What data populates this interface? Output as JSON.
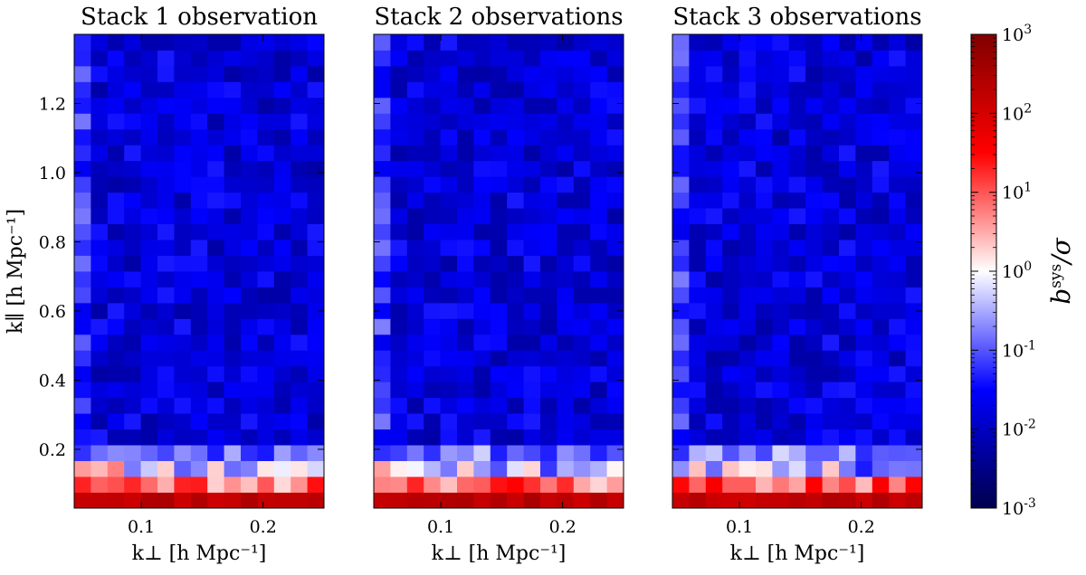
{
  "chart_data": {
    "type": "heatmap",
    "panels": [
      {
        "title": "Stack 1 observation",
        "seed": 11
      },
      {
        "title": "Stack 2 observations",
        "seed": 23
      },
      {
        "title": "Stack 3 observations",
        "seed": 37
      }
    ],
    "xlabel": "k⊥ [h Mpc⁻¹]",
    "ylabel": "k∥ [h Mpc⁻¹]",
    "xlim": [
      0.045,
      0.25
    ],
    "ylim": [
      0.03,
      1.4
    ],
    "xticks": [
      0.1,
      0.2
    ],
    "xtick_labels": [
      "0.1",
      "0.2"
    ],
    "yticks": [
      0.2,
      0.4,
      0.6,
      0.8,
      1.0,
      1.2
    ],
    "ytick_labels": [
      "0.2",
      "0.4",
      "0.6",
      "0.8",
      "1.0",
      "1.2"
    ],
    "grid": {
      "cols": 15,
      "rows": 30
    },
    "colorbar": {
      "label": "b^sys/σ",
      "scale": "log",
      "range": [
        0.001,
        1000
      ],
      "colormap": "seismic",
      "tick_labels": [
        "10^-3",
        "10^-2",
        "10^-1",
        "10^0",
        "10^1",
        "10^2",
        "10^3"
      ],
      "colors": {
        "low": "#00004c",
        "mid_low": "#0000ff",
        "mid": "#ffffff",
        "mid_high": "#ff0000",
        "high": "#800000"
      }
    },
    "legend": "none",
    "grid_lines": false
  }
}
